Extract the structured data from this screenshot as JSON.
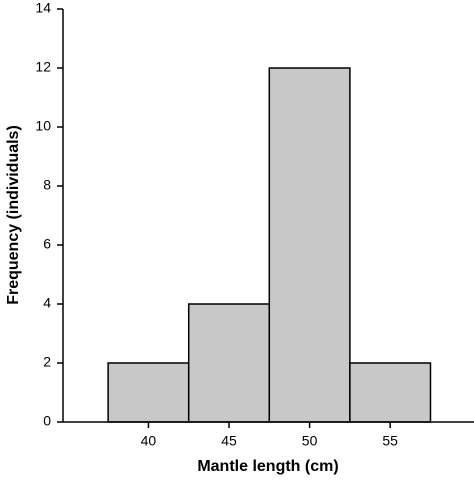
{
  "chart_data": {
    "type": "histogram",
    "xlabel": "Mantle length (cm)",
    "ylabel": "Frequency (individuals)",
    "bins": [
      37.5,
      42.5,
      47.5,
      52.5,
      57.5
    ],
    "values": [
      2,
      4,
      12,
      2
    ],
    "color": "#c8c8c8",
    "xlim": [
      34.7,
      60.2
    ],
    "xticks": [
      40,
      45,
      50,
      55
    ],
    "ylim": [
      0,
      14
    ],
    "yticks": [
      0,
      2,
      4,
      6,
      8,
      10,
      12,
      14
    ]
  }
}
